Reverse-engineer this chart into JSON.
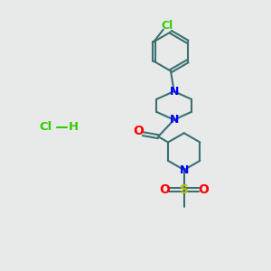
{
  "bg_color": "#e8eaea",
  "bond_color": "#3a7070",
  "N_color": "#0000ff",
  "Cl_color": "#33cc00",
  "O_color": "#ff0000",
  "S_color": "#bbbb00",
  "hcl_color": "#33cc00",
  "bond_width": 1.5,
  "xlim": [
    0,
    10
  ],
  "ylim": [
    0,
    10
  ]
}
